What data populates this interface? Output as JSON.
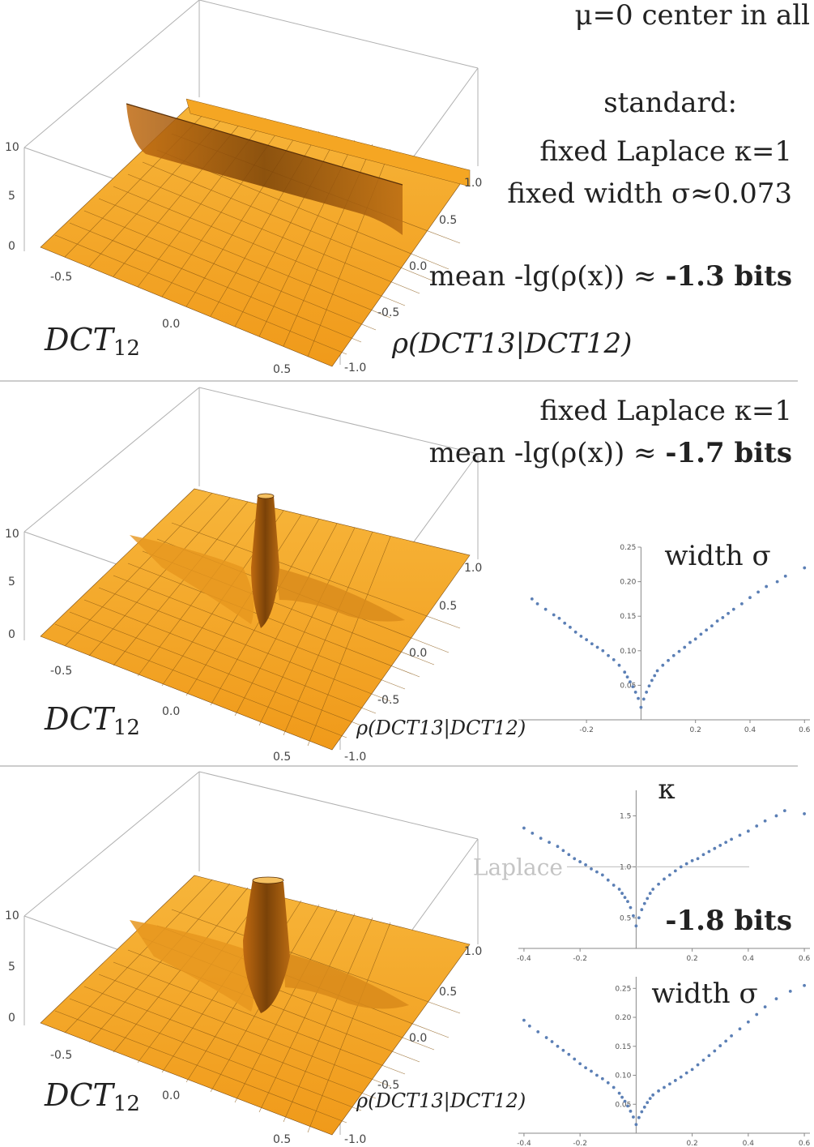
{
  "header": {
    "line": "μ=0 center in all"
  },
  "panels": [
    {
      "texts": [
        "standard:",
        "fixed Laplace κ=1",
        "fixed width σ≈0.073"
      ],
      "mean_prefix": "mean -lg(ρ(x)) ≈ ",
      "mean_value": "-1.3 bits"
    },
    {
      "texts": [
        "fixed Laplace κ=1"
      ],
      "mean_prefix": "mean -lg(ρ(x)) ≈ ",
      "mean_value": "-1.7 bits"
    },
    {
      "texts": [],
      "mean_prefix": "",
      "mean_value": "-1.8 bits"
    }
  ],
  "surface_axes": {
    "z_ticks": [
      "0",
      "5",
      "10"
    ],
    "x_ticks": [
      "-0.5",
      "0.0",
      "0.5"
    ],
    "y_ticks": [
      "1.0",
      "0.5",
      "0.0",
      "-0.5",
      "-1.0"
    ],
    "x_label_main": "DCT",
    "x_label_sub": "12",
    "y_label": "ρ(DCT13|DCT12)"
  },
  "colors": {
    "surface": "#f5a623",
    "surface_dark": "#9a5a10",
    "points": "#5b7fb5",
    "ref_line": "#c8c8c8",
    "divider": "#999999"
  },
  "chart_data": [
    {
      "type": "scatter",
      "title": "width σ",
      "xlim": [
        -0.45,
        0.62
      ],
      "ylim": [
        0,
        0.25
      ],
      "x_ticks": [
        -0.2,
        0.2,
        0.4,
        0.6
      ],
      "x_tick_labels": [
        "-0.2",
        "0.2",
        "0.4",
        "0.6"
      ],
      "y_ticks": [
        0.05,
        0.1,
        0.15,
        0.2,
        0.25
      ],
      "y_tick_labels": [
        "0.05",
        "0.10",
        "0.15",
        "0.20",
        "0.25"
      ],
      "x": [
        -0.4,
        -0.38,
        -0.35,
        -0.32,
        -0.3,
        -0.28,
        -0.26,
        -0.24,
        -0.22,
        -0.2,
        -0.18,
        -0.16,
        -0.14,
        -0.12,
        -0.1,
        -0.08,
        -0.06,
        -0.05,
        -0.04,
        -0.03,
        -0.02,
        -0.01,
        0,
        0.01,
        0.02,
        0.03,
        0.04,
        0.05,
        0.06,
        0.08,
        0.1,
        0.12,
        0.14,
        0.16,
        0.18,
        0.2,
        0.22,
        0.24,
        0.26,
        0.28,
        0.3,
        0.32,
        0.34,
        0.37,
        0.4,
        0.43,
        0.46,
        0.5,
        0.53,
        0.6
      ],
      "y": [
        0.175,
        0.168,
        0.16,
        0.152,
        0.147,
        0.14,
        0.134,
        0.127,
        0.121,
        0.116,
        0.11,
        0.105,
        0.1,
        0.093,
        0.087,
        0.079,
        0.069,
        0.062,
        0.055,
        0.048,
        0.04,
        0.031,
        0.018,
        0.03,
        0.04,
        0.049,
        0.057,
        0.064,
        0.071,
        0.079,
        0.086,
        0.093,
        0.099,
        0.105,
        0.112,
        0.117,
        0.124,
        0.13,
        0.136,
        0.143,
        0.148,
        0.154,
        0.16,
        0.168,
        0.177,
        0.185,
        0.193,
        0.2,
        0.208,
        0.22
      ]
    },
    {
      "type": "scatter",
      "title": "κ",
      "xlim": [
        -0.42,
        0.62
      ],
      "ylim": [
        0.2,
        1.75
      ],
      "x_ticks": [
        -0.4,
        -0.2,
        0.2,
        0.4,
        0.6
      ],
      "x_tick_labels": [
        "-0.4",
        "-0.2",
        "0.2",
        "0.4",
        "0.6"
      ],
      "y_ticks": [
        0.5,
        1.0,
        1.5
      ],
      "y_tick_labels": [
        "0.5",
        "1.0",
        "1.5"
      ],
      "ref_line": {
        "y": 1.0,
        "label": "Laplace"
      },
      "x": [
        -0.4,
        -0.37,
        -0.34,
        -0.31,
        -0.28,
        -0.26,
        -0.24,
        -0.22,
        -0.2,
        -0.18,
        -0.16,
        -0.14,
        -0.12,
        -0.1,
        -0.08,
        -0.06,
        -0.05,
        -0.04,
        -0.03,
        -0.02,
        -0.01,
        0,
        0.01,
        0.02,
        0.03,
        0.04,
        0.05,
        0.06,
        0.08,
        0.1,
        0.12,
        0.14,
        0.16,
        0.18,
        0.2,
        0.22,
        0.24,
        0.26,
        0.28,
        0.3,
        0.32,
        0.34,
        0.37,
        0.4,
        0.43,
        0.46,
        0.5,
        0.53,
        0.6
      ],
      "y": [
        1.38,
        1.33,
        1.28,
        1.24,
        1.2,
        1.16,
        1.12,
        1.08,
        1.05,
        1.02,
        0.98,
        0.95,
        0.92,
        0.87,
        0.82,
        0.78,
        0.74,
        0.7,
        0.66,
        0.6,
        0.52,
        0.42,
        0.5,
        0.58,
        0.64,
        0.69,
        0.74,
        0.78,
        0.83,
        0.88,
        0.92,
        0.96,
        1.0,
        1.03,
        1.06,
        1.08,
        1.12,
        1.15,
        1.18,
        1.21,
        1.24,
        1.27,
        1.31,
        1.35,
        1.4,
        1.45,
        1.5,
        1.55,
        1.52
      ]
    },
    {
      "type": "scatter",
      "title": "width σ",
      "xlim": [
        -0.42,
        0.62
      ],
      "ylim": [
        0,
        0.27
      ],
      "x_ticks": [
        -0.4,
        -0.2,
        0.2,
        0.4,
        0.6
      ],
      "x_tick_labels": [
        "-0.4",
        "-0.2",
        "0.2",
        "0.4",
        "0.6"
      ],
      "y_ticks": [
        0.05,
        0.1,
        0.15,
        0.2,
        0.25
      ],
      "y_tick_labels": [
        "0.05",
        "0.10",
        "0.15",
        "0.20",
        "0.25"
      ],
      "x": [
        -0.4,
        -0.38,
        -0.35,
        -0.32,
        -0.3,
        -0.28,
        -0.26,
        -0.24,
        -0.22,
        -0.2,
        -0.18,
        -0.16,
        -0.14,
        -0.12,
        -0.1,
        -0.08,
        -0.06,
        -0.05,
        -0.04,
        -0.03,
        -0.02,
        -0.01,
        0,
        0.01,
        0.02,
        0.03,
        0.04,
        0.05,
        0.06,
        0.08,
        0.1,
        0.12,
        0.14,
        0.16,
        0.18,
        0.2,
        0.22,
        0.24,
        0.26,
        0.28,
        0.3,
        0.32,
        0.34,
        0.37,
        0.4,
        0.43,
        0.46,
        0.5,
        0.55,
        0.6
      ],
      "y": [
        0.195,
        0.185,
        0.175,
        0.165,
        0.158,
        0.15,
        0.143,
        0.136,
        0.128,
        0.12,
        0.113,
        0.107,
        0.1,
        0.094,
        0.087,
        0.079,
        0.069,
        0.062,
        0.055,
        0.047,
        0.038,
        0.028,
        0.015,
        0.027,
        0.037,
        0.045,
        0.053,
        0.06,
        0.066,
        0.073,
        0.079,
        0.085,
        0.091,
        0.097,
        0.104,
        0.11,
        0.118,
        0.126,
        0.134,
        0.142,
        0.151,
        0.159,
        0.168,
        0.18,
        0.192,
        0.205,
        0.218,
        0.232,
        0.245,
        0.255
      ]
    }
  ]
}
